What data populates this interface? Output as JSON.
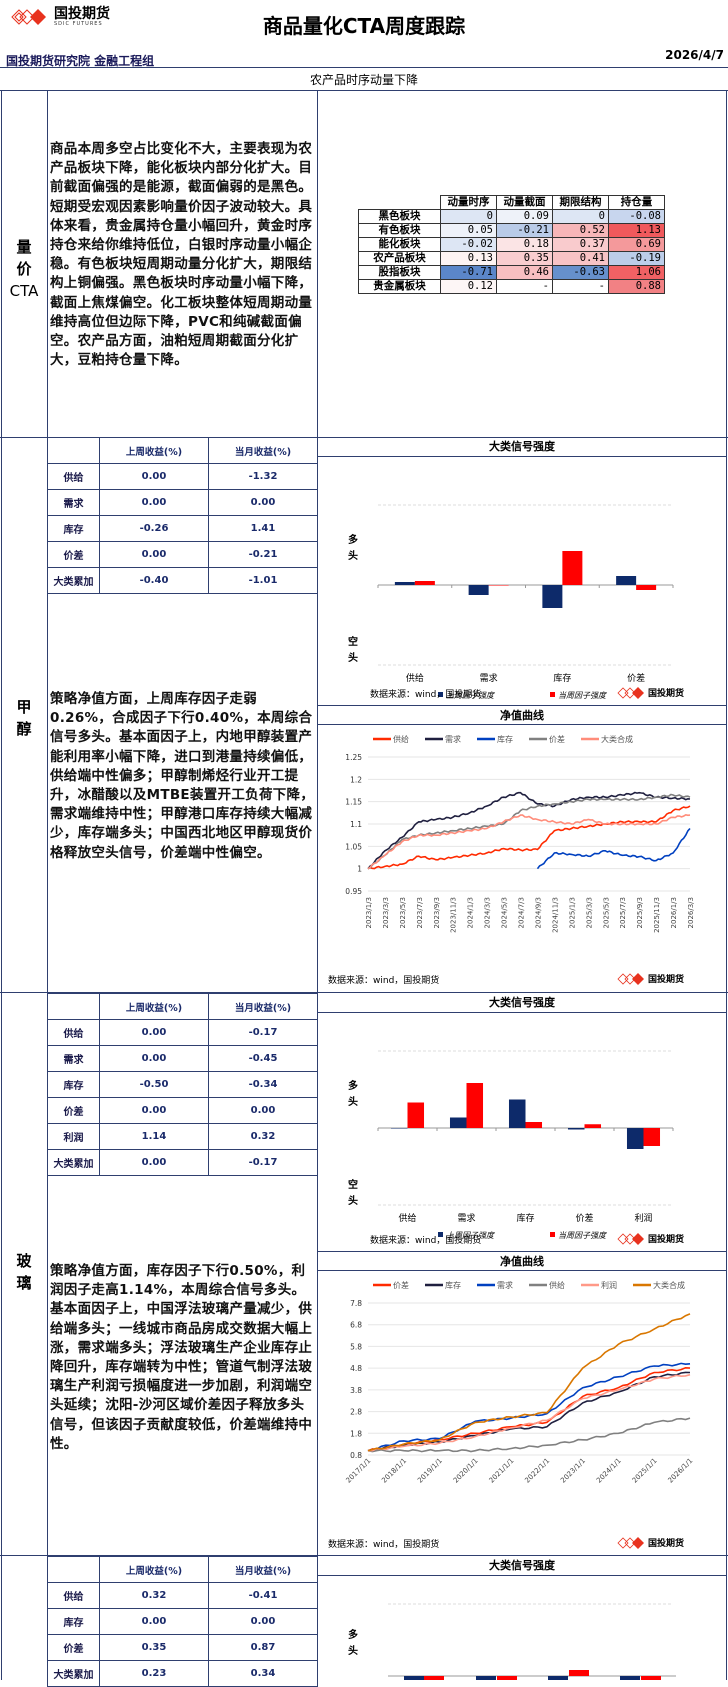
{
  "header": {
    "logo_text": "国投期货",
    "logo_sub": "SDIC FUTURES",
    "title": "商品量化CTA周度跟踪",
    "org": "国投期货研究院 金融工程组",
    "date": "2026/4/7",
    "subtitle": "农产品时序动量下降"
  },
  "section_cta": {
    "label": [
      "量",
      "价",
      "CTA"
    ],
    "text": "商品本周多空占比变化不大，主要表现为农产品板块下降，能化板块内部分化扩大。目前截面偏强的是能源，截面偏弱的是黑色。短期受宏观因素影响量价因子波动较大。具体来看，贵金属持仓量小幅回升，黄金时序持仓来给你维持低位，白银时序动量小幅企稳。有色板块短周期动量分化扩大，期限结构上铜偏强。黑色板块时序动量小幅下降，截面上焦煤偏空。化工板块整体短周期动量维持高位但边际下降，PVC和纯碱截面偏空。农产品方面，油粕短周期截面分化扩大，豆粕持仓量下降。",
    "heatmap": {
      "columns": [
        "动量时序",
        "动量截面",
        "期限结构",
        "持仓量"
      ],
      "rows": [
        {
          "label": "黑色板块",
          "values": [
            "0",
            "0.09",
            "0",
            "-0.08"
          ],
          "colors": [
            "#dde6f4",
            "#eef2f9",
            "#dde6f4",
            "#c8d6ee"
          ]
        },
        {
          "label": "有色板块",
          "values": [
            "0.05",
            "-0.21",
            "0.52",
            "1.13"
          ],
          "colors": [
            "#eef2f9",
            "#b9cbe8",
            "#f7b6b8",
            "#f0595c"
          ]
        },
        {
          "label": "能化板块",
          "values": [
            "-0.02",
            "0.18",
            "0.37",
            "0.69"
          ],
          "colors": [
            "#dde6f4",
            "#fbe4e5",
            "#f9cbcd",
            "#f4999b"
          ]
        },
        {
          "label": "农产品板块",
          "values": [
            "0.13",
            "0.35",
            "0.41",
            "-0.19"
          ],
          "colors": [
            "#fdf3f3",
            "#f9cdcf",
            "#f8c3c5",
            "#bccde9"
          ]
        },
        {
          "label": "股指板块",
          "values": [
            "-0.71",
            "0.46",
            "-0.63",
            "1.06"
          ],
          "colors": [
            "#5b86c9",
            "#f8bfc1",
            "#6690cc",
            "#f16164"
          ]
        },
        {
          "label": "贵金属板块",
          "values": [
            "0.12",
            "-",
            "-",
            "0.88"
          ],
          "colors": [
            "#fdf6f6",
            "#ffffff",
            "#ffffff",
            "#f28184"
          ]
        }
      ]
    }
  },
  "section_methanol": {
    "label": [
      "甲",
      "醇"
    ],
    "returns": {
      "headers": [
        "上周收益(%)",
        "当月收益(%)"
      ],
      "rows": [
        {
          "label": "供给",
          "week": "0.00",
          "month": "-1.32"
        },
        {
          "label": "需求",
          "week": "0.00",
          "month": "0.00"
        },
        {
          "label": "库存",
          "week": "-0.26",
          "month": "1.41"
        },
        {
          "label": "价差",
          "week": "0.00",
          "month": "-0.21"
        },
        {
          "label": "大类累加",
          "week": "-0.40",
          "month": "-1.01"
        }
      ]
    },
    "text": "策略净值方面，上周库存因子走弱0.26%，合成因子下行0.40%，本周综合信号多头。基本面因子上，内地甲醇装置产能利用率小幅下降，进口到港量持续偏低，供给端中性偏多；甲醇制烯烃行业开工提升，冰醋酸以及MTBE装置开工负荷下降，需求端维持中性；甲醇港口库存持续大幅减少，库存端多头；中国西北地区甲醇现货价格释放空头信号，价差端中性偏空。",
    "signal_chart": {
      "title": "大类信号强度",
      "long_label": "多头",
      "short_label": "空头",
      "legend_prev": "上周因子强度",
      "legend_curr": "当周因子强度",
      "source": "数据来源：wind，国投期货"
    },
    "nav_chart": {
      "title": "净值曲线",
      "source": "数据来源：wind，国投期货"
    }
  },
  "section_glass": {
    "label": [
      "玻",
      "璃"
    ],
    "returns": {
      "headers": [
        "上周收益(%)",
        "当月收益(%)"
      ],
      "rows": [
        {
          "label": "供给",
          "week": "0.00",
          "month": "-0.17"
        },
        {
          "label": "需求",
          "week": "0.00",
          "month": "-0.45"
        },
        {
          "label": "库存",
          "week": "-0.50",
          "month": "-0.34"
        },
        {
          "label": "价差",
          "week": "0.00",
          "month": "0.00"
        },
        {
          "label": "利润",
          "week": "1.14",
          "month": "0.32"
        },
        {
          "label": "大类累加",
          "week": "0.00",
          "month": "-0.17"
        }
      ]
    },
    "text": "策略净值方面，库存因子下行0.50%，利润因子走高1.14%，本周综合信号多头。基本面因子上，中国浮法玻璃产量减少，供给端多头；一线城市商品房成交数据大幅上涨，需求端多头；浮法玻璃生产企业库存止降回升，库存端转为中性；管道气制浮法玻璃生产利润亏损幅度进一步加剧，利润端空头延续；沈阳-沙河区域价差因子释放多头信号，但该因子贡献度较低，价差端维持中性。",
    "signal_chart": {
      "title": "大类信号强度",
      "long_label": "多头",
      "short_label": "空头",
      "legend_prev": "上周因子强度",
      "legend_curr": "当周因子强度",
      "source": "数据来源：wind，国投期货"
    },
    "nav_chart": {
      "title": "净值曲线",
      "source": "数据来源：wind，国投期货"
    }
  },
  "section_next": {
    "returns": {
      "headers": [
        "上周收益(%)",
        "当月收益(%)"
      ],
      "rows": [
        {
          "label": "供给",
          "week": "0.32",
          "month": "-0.41"
        },
        {
          "label": "库存",
          "week": "0.00",
          "month": "0.00"
        },
        {
          "label": "价差",
          "week": "0.35",
          "month": "0.87"
        },
        {
          "label": "大类累加",
          "week": "0.23",
          "month": "0.34"
        }
      ]
    },
    "signal_chart": {
      "title": "大类信号强度",
      "long_label": "多头"
    }
  },
  "colors": {
    "border": "#2f3f6f",
    "prev_bar": "#0d2a6a",
    "curr_bar": "#ff0000",
    "brand": "#e8321e"
  },
  "chart_data": [
    {
      "type": "bar",
      "title": "甲醇 大类信号强度",
      "categories": [
        "供给",
        "需求",
        "库存",
        "价差"
      ],
      "series": [
        {
          "name": "上周因子强度",
          "values": [
            0.03,
            -0.1,
            -0.23,
            0.09
          ]
        },
        {
          "name": "当周因子强度",
          "values": [
            0.04,
            0,
            0.34,
            -0.05
          ]
        }
      ],
      "ylabel": "多头 / 空头",
      "ylim": [
        -0.8,
        0.8
      ]
    },
    {
      "type": "line",
      "title": "甲醇 净值曲线",
      "x": [
        "2023/1/3",
        "2023/3/3",
        "2023/5/3",
        "2023/7/3",
        "2023/9/3",
        "2023/11/3",
        "2024/1/3",
        "2024/3/3",
        "2024/5/3",
        "2024/7/3",
        "2024/9/3",
        "2024/11/3",
        "2025/1/3",
        "2025/3/3",
        "2025/5/3",
        "2025/7/3",
        "2025/9/3",
        "2025/11/3",
        "2026/1/3",
        "2026/3/3"
      ],
      "series": [
        {
          "name": "供给",
          "color": "#ff2a00",
          "values": [
            1.0,
            1.005,
            1.01,
            1.028,
            1.02,
            1.025,
            1.03,
            1.035,
            1.045,
            1.042,
            1.043,
            1.085,
            1.09,
            1.095,
            1.1,
            1.105,
            1.105,
            1.105,
            1.13,
            1.14
          ]
        },
        {
          "name": "需求",
          "color": "#1f1f3f",
          "values": [
            1.0,
            1.04,
            1.07,
            1.105,
            1.11,
            1.115,
            1.125,
            1.14,
            1.16,
            1.17,
            1.145,
            1.14,
            1.155,
            1.16,
            1.16,
            1.165,
            1.17,
            1.16,
            1.158,
            1.156
          ]
        },
        {
          "name": "库存",
          "color": "#0040c0",
          "values": [
            null,
            null,
            null,
            null,
            null,
            null,
            null,
            null,
            null,
            null,
            1.0,
            1.035,
            1.032,
            1.028,
            1.04,
            1.03,
            1.027,
            1.018,
            1.035,
            1.09
          ]
        },
        {
          "name": "价差",
          "color": "#808080",
          "values": [
            1.0,
            1.03,
            1.065,
            1.075,
            1.08,
            1.085,
            1.09,
            1.095,
            1.1,
            1.13,
            1.14,
            1.145,
            1.15,
            1.155,
            1.155,
            1.155,
            1.155,
            1.16,
            1.165,
            1.16
          ]
        },
        {
          "name": "大类合成",
          "color": "#ff8c7a",
          "values": [
            1.0,
            1.03,
            1.06,
            1.075,
            1.075,
            1.08,
            1.085,
            1.09,
            1.105,
            1.12,
            1.11,
            1.105,
            1.1,
            1.11,
            1.1,
            1.1,
            1.1,
            1.1,
            1.115,
            1.12
          ]
        }
      ],
      "ylim": [
        0.95,
        1.25
      ],
      "yticks": [
        0.95,
        1,
        1.05,
        1.1,
        1.15,
        1.2,
        1.25
      ]
    },
    {
      "type": "bar",
      "title": "玻璃 大类信号强度",
      "categories": [
        "供给",
        "需求",
        "库存",
        "价差",
        "利润"
      ],
      "series": [
        {
          "name": "上周因子强度",
          "values": [
            0,
            0.14,
            0.38,
            -0.02,
            -0.28
          ]
        },
        {
          "name": "当周因子强度",
          "values": [
            0.34,
            0.6,
            0.08,
            0.05,
            -0.24
          ]
        }
      ],
      "ylabel": "多头 / 空头",
      "ylim": [
        -1,
        1
      ]
    },
    {
      "type": "line",
      "title": "玻璃 净值曲线",
      "x": [
        "2017/1/1",
        "2018/1/1",
        "2019/1/1",
        "2020/1/1",
        "2021/1/1",
        "2022/1/1",
        "2023/1/1",
        "2024/1/1",
        "2025/1/1",
        "2026/1/1"
      ],
      "series": [
        {
          "name": "价差",
          "color": "#ff2a00",
          "values": [
            1.0,
            1.3,
            1.5,
            1.8,
            2.1,
            2.3,
            3.5,
            3.9,
            4.6,
            4.8
          ]
        },
        {
          "name": "库存",
          "color": "#1f1f3f",
          "values": [
            1.0,
            1.25,
            1.4,
            1.7,
            2.0,
            2.1,
            3.2,
            3.7,
            4.4,
            4.6
          ]
        },
        {
          "name": "需求",
          "color": "#0040c0",
          "values": [
            1.0,
            1.45,
            1.55,
            2.35,
            2.5,
            2.7,
            3.9,
            4.4,
            4.9,
            5.0
          ]
        },
        {
          "name": "供给",
          "color": "#808080",
          "values": [
            1.0,
            1.0,
            1.0,
            1.0,
            1.1,
            1.25,
            1.5,
            1.8,
            2.3,
            2.5
          ]
        },
        {
          "name": "利润",
          "color": "#ff9988",
          "values": [
            1.0,
            1.2,
            1.35,
            1.65,
            2.05,
            2.4,
            3.4,
            3.8,
            4.3,
            4.5
          ]
        },
        {
          "name": "大类合成",
          "color": "#d97700",
          "values": [
            1.0,
            1.3,
            1.5,
            2.3,
            2.55,
            2.75,
            4.8,
            5.9,
            6.6,
            7.3
          ]
        }
      ],
      "ylim": [
        0.8,
        7.8
      ],
      "yticks": [
        0.8,
        1.8,
        2.8,
        3.8,
        4.8,
        5.8,
        6.8,
        7.8
      ]
    }
  ]
}
